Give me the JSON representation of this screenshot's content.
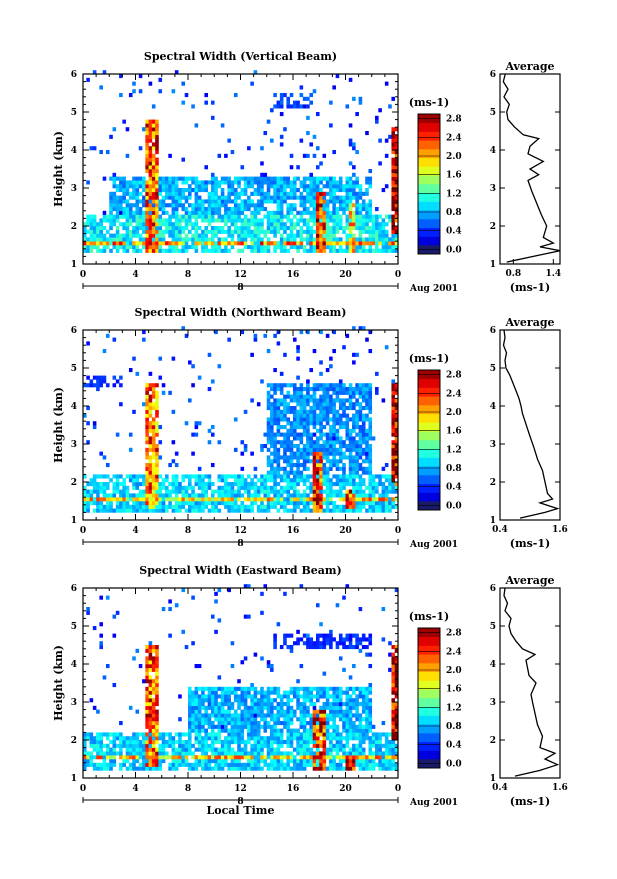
{
  "chart_data": [
    {
      "type": "heatmap",
      "title": "Spectral Width (Vertical Beam)",
      "ylabel": "Height (km)",
      "xlabel": "",
      "x_ticks": [
        "0",
        "4",
        "8",
        "12",
        "16",
        "20",
        "0"
      ],
      "y_ticks": [
        "1",
        "2",
        "3",
        "4",
        "5",
        "6"
      ],
      "date_ticks": [
        "8"
      ],
      "date_suffix": "Aug 2001",
      "xlim": [
        0,
        24
      ],
      "ylim": [
        1,
        6
      ],
      "colorbar": {
        "unit": "(ms-1)",
        "labels": [
          "0.0",
          "0.4",
          "0.8",
          "1.2",
          "1.6",
          "2.0",
          "2.4",
          "2.8"
        ],
        "range": [
          0,
          3.0
        ]
      },
      "features": [
        {
          "kind": "layer",
          "t0": 0,
          "t1": 24,
          "h0": 1.3,
          "h1": 2.3,
          "value": 1.1
        },
        {
          "kind": "layer",
          "t0": 0,
          "t1": 24,
          "h0": 1.45,
          "h1": 1.6,
          "value": 2.2
        },
        {
          "kind": "layer",
          "t0": 2,
          "t1": 22,
          "h0": 2.3,
          "h1": 3.3,
          "value": 0.9
        },
        {
          "kind": "column",
          "t0": 4.6,
          "t1": 5.6,
          "h0": 1.3,
          "h1": 4.8,
          "value": 2.4
        },
        {
          "kind": "column",
          "t0": 17.6,
          "t1": 18.3,
          "h0": 1.3,
          "h1": 2.9,
          "value": 2.6
        },
        {
          "kind": "column",
          "t0": 20.2,
          "t1": 20.6,
          "h0": 1.3,
          "h1": 2.6,
          "value": 2.0
        },
        {
          "kind": "column",
          "t0": 23.4,
          "t1": 24,
          "h0": 1.8,
          "h1": 4.6,
          "value": 2.9
        },
        {
          "kind": "patch",
          "t0": 14.5,
          "t1": 17.5,
          "h0": 5.0,
          "h1": 5.4,
          "value": 0.6
        }
      ],
      "average": {
        "title": "Average",
        "xlabel": "(ms-1)",
        "x_ticks": [
          "0.8",
          "1.4"
        ],
        "xlim": [
          0.6,
          1.5
        ],
        "profile": [
          {
            "h": 1.05,
            "v": 0.7
          },
          {
            "h": 1.2,
            "v": 1.1
          },
          {
            "h": 1.35,
            "v": 1.5
          },
          {
            "h": 1.45,
            "v": 1.2
          },
          {
            "h": 1.55,
            "v": 1.4
          },
          {
            "h": 1.7,
            "v": 1.25
          },
          {
            "h": 2.0,
            "v": 1.3
          },
          {
            "h": 2.3,
            "v": 1.22
          },
          {
            "h": 2.6,
            "v": 1.15
          },
          {
            "h": 2.9,
            "v": 1.08
          },
          {
            "h": 3.2,
            "v": 1.02
          },
          {
            "h": 3.35,
            "v": 1.18
          },
          {
            "h": 3.5,
            "v": 1.05
          },
          {
            "h": 3.7,
            "v": 1.25
          },
          {
            "h": 3.9,
            "v": 1.02
          },
          {
            "h": 4.1,
            "v": 1.05
          },
          {
            "h": 4.3,
            "v": 1.18
          },
          {
            "h": 4.4,
            "v": 0.95
          },
          {
            "h": 4.6,
            "v": 0.82
          },
          {
            "h": 4.8,
            "v": 0.72
          },
          {
            "h": 5.0,
            "v": 0.7
          },
          {
            "h": 5.2,
            "v": 0.74
          },
          {
            "h": 5.4,
            "v": 0.66
          },
          {
            "h": 5.6,
            "v": 0.72
          },
          {
            "h": 5.8,
            "v": 0.65
          },
          {
            "h": 6.0,
            "v": 0.68
          }
        ]
      }
    },
    {
      "type": "heatmap",
      "title": "Spectral Width (Northward Beam)",
      "ylabel": "Height (km)",
      "xlabel": "",
      "x_ticks": [
        "0",
        "4",
        "8",
        "12",
        "16",
        "20",
        "0"
      ],
      "y_ticks": [
        "1",
        "2",
        "3",
        "4",
        "5",
        "6"
      ],
      "date_ticks": [
        "8"
      ],
      "date_suffix": "Aug 2001",
      "xlim": [
        0,
        24
      ],
      "ylim": [
        1,
        6
      ],
      "colorbar": {
        "unit": "(ms-1)",
        "labels": [
          "0.0",
          "0.4",
          "0.8",
          "1.2",
          "1.6",
          "2.0",
          "2.4",
          "2.8"
        ],
        "range": [
          0,
          3.0
        ]
      },
      "features": [
        {
          "kind": "layer",
          "t0": 0,
          "t1": 24,
          "h0": 1.2,
          "h1": 2.2,
          "value": 1.0
        },
        {
          "kind": "layer",
          "t0": 0,
          "t1": 24,
          "h0": 1.45,
          "h1": 1.6,
          "value": 2.0
        },
        {
          "kind": "layer",
          "t0": 14,
          "t1": 22,
          "h0": 2.2,
          "h1": 4.6,
          "value": 0.8
        },
        {
          "kind": "column",
          "t0": 4.6,
          "t1": 5.6,
          "h0": 1.3,
          "h1": 4.6,
          "value": 2.3
        },
        {
          "kind": "column",
          "t0": 17.5,
          "t1": 18.2,
          "h0": 1.2,
          "h1": 2.8,
          "value": 2.6
        },
        {
          "kind": "column",
          "t0": 20.0,
          "t1": 20.6,
          "h0": 1.3,
          "h1": 1.8,
          "value": 2.5
        },
        {
          "kind": "column",
          "t0": 23.4,
          "t1": 24,
          "h0": 1.9,
          "h1": 4.6,
          "value": 2.9
        },
        {
          "kind": "patch",
          "t0": 0,
          "t1": 3,
          "h0": 4.5,
          "h1": 4.8,
          "value": 0.5
        }
      ],
      "average": {
        "title": "Average",
        "xlabel": "(ms-1)",
        "x_ticks": [
          "0.4",
          "1.6"
        ],
        "xlim": [
          0.4,
          1.6
        ],
        "profile": [
          {
            "h": 1.05,
            "v": 0.8
          },
          {
            "h": 1.2,
            "v": 1.3
          },
          {
            "h": 1.3,
            "v": 1.55
          },
          {
            "h": 1.45,
            "v": 1.2
          },
          {
            "h": 1.55,
            "v": 1.45
          },
          {
            "h": 1.7,
            "v": 1.35
          },
          {
            "h": 2.0,
            "v": 1.3
          },
          {
            "h": 2.3,
            "v": 1.25
          },
          {
            "h": 2.6,
            "v": 1.15
          },
          {
            "h": 2.9,
            "v": 1.08
          },
          {
            "h": 3.2,
            "v": 1.0
          },
          {
            "h": 3.4,
            "v": 0.95
          },
          {
            "h": 3.6,
            "v": 0.9
          },
          {
            "h": 3.8,
            "v": 0.85
          },
          {
            "h": 4.0,
            "v": 0.82
          },
          {
            "h": 4.2,
            "v": 0.78
          },
          {
            "h": 4.4,
            "v": 0.72
          },
          {
            "h": 4.6,
            "v": 0.66
          },
          {
            "h": 4.8,
            "v": 0.6
          },
          {
            "h": 5.0,
            "v": 0.52
          },
          {
            "h": 5.2,
            "v": 0.5
          },
          {
            "h": 5.4,
            "v": 0.53
          },
          {
            "h": 5.6,
            "v": 0.47
          },
          {
            "h": 5.8,
            "v": 0.5
          },
          {
            "h": 6.0,
            "v": 0.48
          }
        ]
      }
    },
    {
      "type": "heatmap",
      "title": "Spectral Width (Eastward Beam)",
      "ylabel": "Height (km)",
      "xlabel": "Local Time",
      "x_ticks": [
        "0",
        "4",
        "8",
        "12",
        "16",
        "20",
        "0"
      ],
      "y_ticks": [
        "1",
        "2",
        "3",
        "4",
        "5",
        "6"
      ],
      "date_ticks": [
        "8"
      ],
      "date_suffix": "Aug 2001",
      "xlim": [
        0,
        24
      ],
      "ylim": [
        1,
        6
      ],
      "colorbar": {
        "unit": "(ms-1)",
        "labels": [
          "0.0",
          "0.4",
          "0.8",
          "1.2",
          "1.6",
          "2.0",
          "2.4",
          "2.8"
        ],
        "range": [
          0,
          3.0
        ]
      },
      "features": [
        {
          "kind": "layer",
          "t0": 0,
          "t1": 24,
          "h0": 1.2,
          "h1": 2.2,
          "value": 1.0
        },
        {
          "kind": "layer",
          "t0": 0,
          "t1": 24,
          "h0": 1.45,
          "h1": 1.6,
          "value": 2.0
        },
        {
          "kind": "layer",
          "t0": 8,
          "t1": 22,
          "h0": 2.2,
          "h1": 3.4,
          "value": 0.9
        },
        {
          "kind": "column",
          "t0": 4.6,
          "t1": 5.6,
          "h0": 1.3,
          "h1": 4.5,
          "value": 2.4
        },
        {
          "kind": "column",
          "t0": 17.5,
          "t1": 18.3,
          "h0": 1.2,
          "h1": 2.8,
          "value": 2.6
        },
        {
          "kind": "column",
          "t0": 20.0,
          "t1": 20.6,
          "h0": 1.2,
          "h1": 1.6,
          "value": 2.7
        },
        {
          "kind": "column",
          "t0": 23.4,
          "t1": 24,
          "h0": 2.0,
          "h1": 4.5,
          "value": 2.9
        },
        {
          "kind": "patch",
          "t0": 14.5,
          "t1": 22,
          "h0": 4.4,
          "h1": 4.8,
          "value": 0.5
        }
      ],
      "average": {
        "title": "Average",
        "xlabel": "(ms-1)",
        "x_ticks": [
          "0.4",
          "1.6"
        ],
        "xlim": [
          0.4,
          1.6
        ],
        "profile": [
          {
            "h": 1.05,
            "v": 0.7
          },
          {
            "h": 1.2,
            "v": 1.2
          },
          {
            "h": 1.35,
            "v": 1.55
          },
          {
            "h": 1.5,
            "v": 1.3
          },
          {
            "h": 1.65,
            "v": 1.5
          },
          {
            "h": 1.8,
            "v": 1.2
          },
          {
            "h": 2.1,
            "v": 1.25
          },
          {
            "h": 2.4,
            "v": 1.15
          },
          {
            "h": 2.7,
            "v": 1.1
          },
          {
            "h": 3.0,
            "v": 1.05
          },
          {
            "h": 3.2,
            "v": 1.02
          },
          {
            "h": 3.5,
            "v": 1.12
          },
          {
            "h": 3.7,
            "v": 0.98
          },
          {
            "h": 3.9,
            "v": 0.95
          },
          {
            "h": 4.1,
            "v": 0.92
          },
          {
            "h": 4.25,
            "v": 1.1
          },
          {
            "h": 4.4,
            "v": 0.85
          },
          {
            "h": 4.6,
            "v": 0.72
          },
          {
            "h": 4.8,
            "v": 0.62
          },
          {
            "h": 5.0,
            "v": 0.58
          },
          {
            "h": 5.2,
            "v": 0.62
          },
          {
            "h": 5.4,
            "v": 0.5
          },
          {
            "h": 5.6,
            "v": 0.55
          },
          {
            "h": 5.8,
            "v": 0.48
          },
          {
            "h": 6.0,
            "v": 0.5
          }
        ]
      }
    }
  ]
}
